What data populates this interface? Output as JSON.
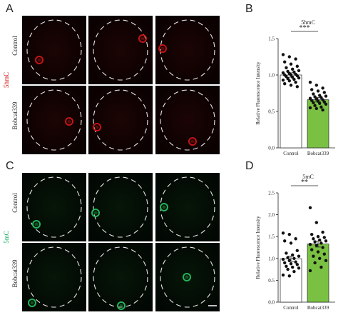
{
  "panels": {
    "A": {
      "letter": "A",
      "stain": "5hmC",
      "stain_color": "#d40000",
      "rows": [
        "Control",
        "Bobcat339"
      ],
      "channel_color": "#c41414"
    },
    "B": {
      "letter": "B"
    },
    "C": {
      "letter": "C",
      "stain": "5mC",
      "stain_color": "#00a651",
      "rows": [
        "Control",
        "Bobcat339"
      ],
      "channel_color": "#22b45a"
    },
    "D": {
      "letter": "D"
    }
  },
  "chart_data": [
    {
      "type": "bar",
      "title": "5hmC",
      "xlabel": "",
      "ylabel": "Relative Fluorescence Intensity",
      "categories": [
        "Control",
        "Bobcat339"
      ],
      "values": [
        1.0,
        0.66
      ],
      "errors": [
        0.03,
        0.03
      ],
      "bar_colors": [
        "#ffffff",
        "#7ac143"
      ],
      "ylim": [
        0,
        1.5
      ],
      "yticks": [
        "0.0",
        "0.5",
        "1.0",
        "1.5"
      ],
      "significance": "***",
      "points": [
        [
          1.28,
          1.25,
          1.22,
          1.18,
          1.15,
          1.12,
          1.1,
          1.08,
          1.06,
          1.05,
          1.04,
          1.03,
          1.02,
          1.01,
          1.0,
          1.0,
          0.99,
          0.98,
          0.97,
          0.96,
          0.95,
          0.94,
          0.93,
          0.92,
          0.9,
          0.88,
          0.86,
          0.84
        ],
        [
          0.9,
          0.86,
          0.82,
          0.8,
          0.78,
          0.76,
          0.74,
          0.72,
          0.71,
          0.7,
          0.69,
          0.68,
          0.67,
          0.66,
          0.65,
          0.64,
          0.63,
          0.62,
          0.61,
          0.6,
          0.58,
          0.56,
          0.55,
          0.54,
          0.52
        ]
      ]
    },
    {
      "type": "bar",
      "title": "5mC",
      "xlabel": "",
      "ylabel": "Relative Fluorescence Intensity",
      "categories": [
        "Control",
        "Bobcat339"
      ],
      "values": [
        0.99,
        1.33
      ],
      "errors": [
        0.06,
        0.07
      ],
      "bar_colors": [
        "#ffffff",
        "#7ac143"
      ],
      "ylim": [
        0,
        2.5
      ],
      "yticks": [
        "0.0",
        "0.5",
        "1.0",
        "1.5",
        "2.0",
        "2.5"
      ],
      "significance": "**",
      "points": [
        [
          1.58,
          1.55,
          1.45,
          1.4,
          1.35,
          1.18,
          1.12,
          1.08,
          1.05,
          1.02,
          1.0,
          0.98,
          0.95,
          0.92,
          0.9,
          0.88,
          0.86,
          0.82,
          0.8,
          0.78,
          0.75,
          0.7,
          0.62,
          0.6
        ],
        [
          2.16,
          1.82,
          1.6,
          1.55,
          1.5,
          1.48,
          1.45,
          1.42,
          1.4,
          1.38,
          1.35,
          1.32,
          1.3,
          1.25,
          1.2,
          1.15,
          1.1,
          1.05,
          1.0,
          0.95,
          0.9,
          0.8,
          0.72
        ]
      ]
    }
  ]
}
